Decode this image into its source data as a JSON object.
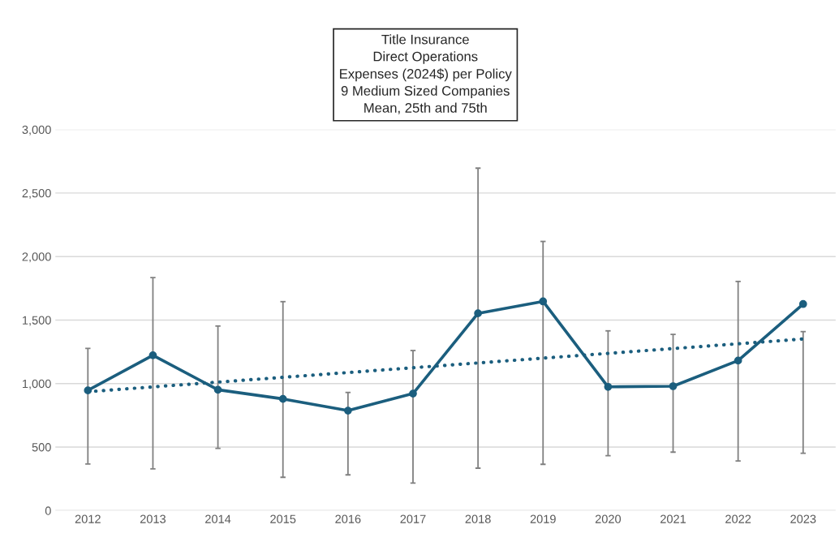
{
  "chart_data": {
    "type": "line",
    "title": "Title Insurance\nDirect Operations\nExpenses (2024$) per Policy\n9 Medium Sized Companies\nMean, 25th and 75th",
    "x": [
      2012,
      2013,
      2014,
      2015,
      2016,
      2017,
      2018,
      2019,
      2020,
      2021,
      2022,
      2023
    ],
    "xlim": [
      2011.5,
      2023.5
    ],
    "xticks": [
      2012,
      2013,
      2014,
      2015,
      2016,
      2017,
      2018,
      2019,
      2020,
      2021,
      2022,
      2023
    ],
    "ylim": [
      0,
      3000
    ],
    "yticks": [
      0,
      500,
      {
        "value": 1000,
        "label": "1,000"
      },
      {
        "value": 1500,
        "label": "1,500"
      },
      {
        "value": 2000,
        "label": "2,000"
      },
      {
        "value": 2500,
        "label": "2,500"
      },
      {
        "value": 3000,
        "label": "3,000"
      }
    ],
    "grid": "y",
    "legend": false,
    "series": [
      {
        "color": "#1b5e7e",
        "marker": "circle",
        "line_style": "solid",
        "values": [
          946,
          1223,
          951,
          879,
          787,
          921,
          1553,
          1647,
          974,
          979,
          1181,
          1626
        ],
        "errors": [
          [
            366,
            1277
          ],
          [
            328,
            1834
          ],
          [
            489,
            1453
          ],
          [
            262,
            1645
          ],
          [
            281,
            930
          ],
          [
            217,
            1260
          ],
          [
            334,
            2696
          ],
          [
            364,
            2119
          ],
          [
            432,
            1415
          ],
          [
            460,
            1387
          ],
          [
            391,
            1804
          ],
          [
            451,
            1409
          ]
        ]
      },
      {
        "type": "line",
        "color": "#1b5e7e",
        "marker": "none",
        "line_style": "dotted",
        "x": [
          2012,
          2023
        ],
        "values": [
          936,
          1351
        ]
      }
    ]
  }
}
